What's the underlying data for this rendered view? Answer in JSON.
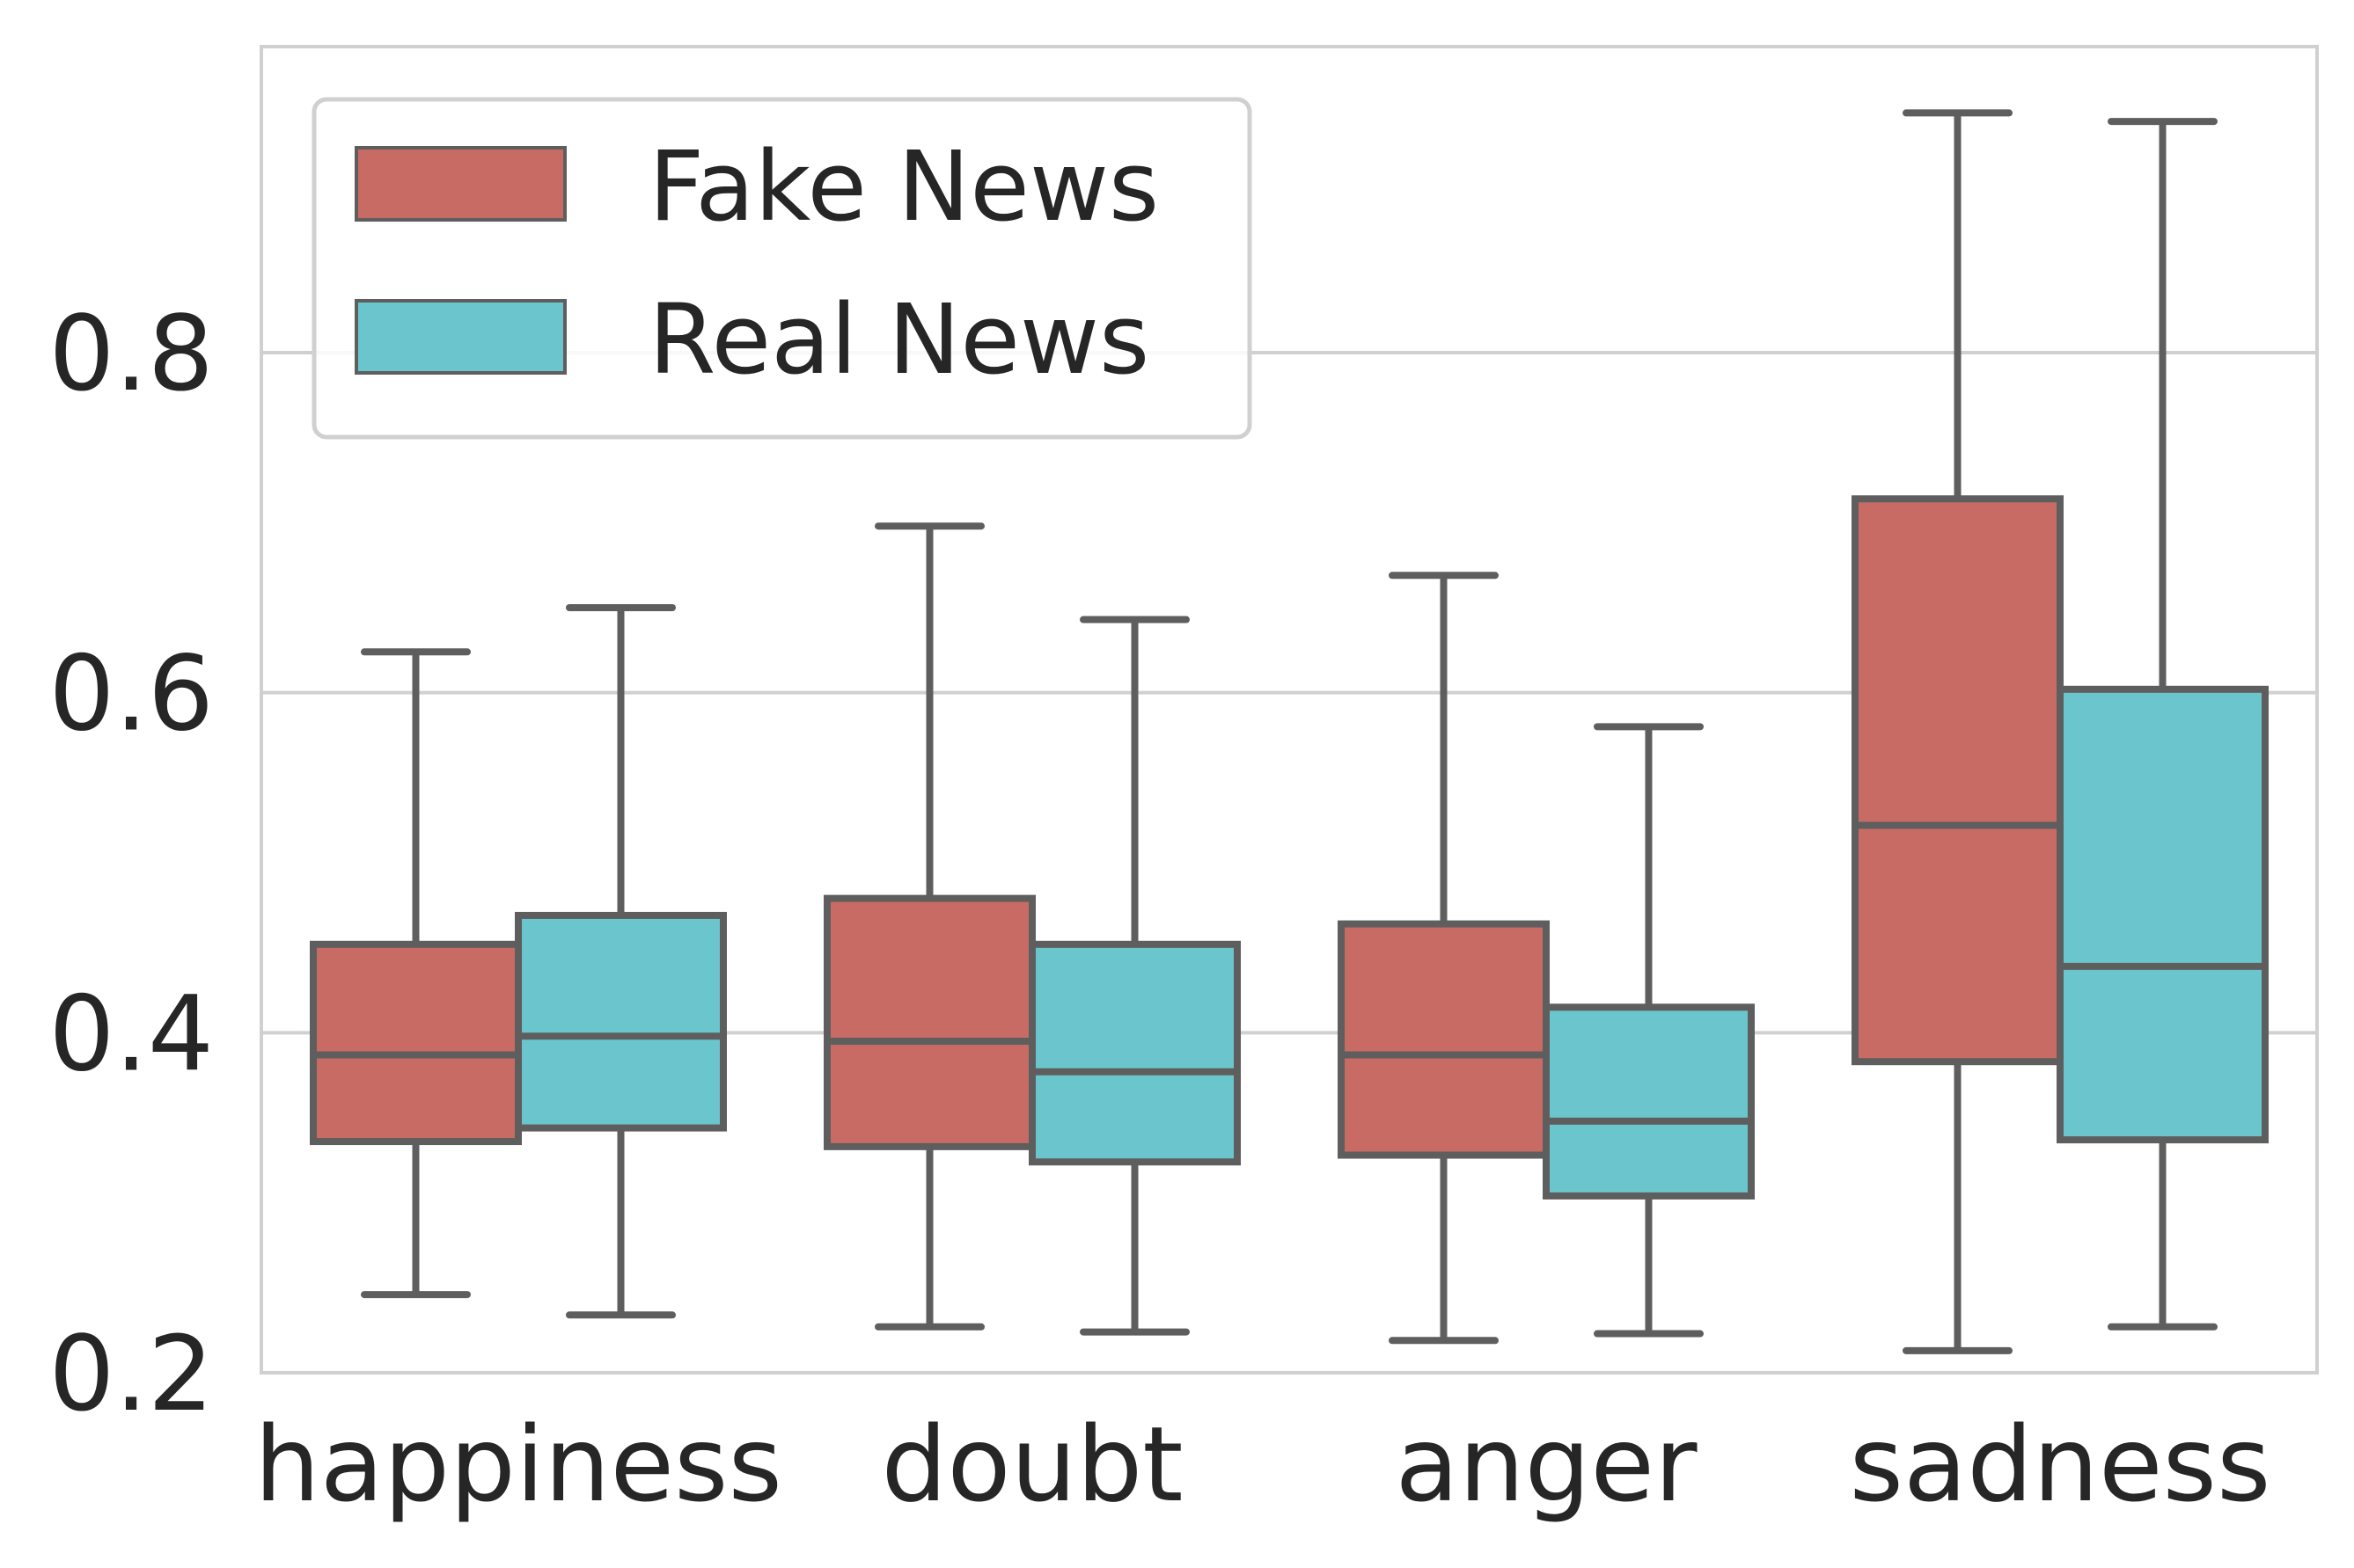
{
  "chart_data": {
    "type": "box",
    "categories": [
      "happiness",
      "doubt",
      "anger",
      "sadness"
    ],
    "series": [
      {
        "name": "Fake News",
        "color": "#c96b65",
        "boxes": [
          {
            "whisker_low": 0.246,
            "q1": 0.336,
            "median": 0.387,
            "q3": 0.452,
            "whisker_high": 0.624
          },
          {
            "whisker_low": 0.227,
            "q1": 0.333,
            "median": 0.395,
            "q3": 0.479,
            "whisker_high": 0.698
          },
          {
            "whisker_low": 0.219,
            "q1": 0.328,
            "median": 0.387,
            "q3": 0.464,
            "whisker_high": 0.669
          },
          {
            "whisker_low": 0.213,
            "q1": 0.383,
            "median": 0.522,
            "q3": 0.714,
            "whisker_high": 0.941
          }
        ]
      },
      {
        "name": "Real News",
        "color": "#6ac5cc",
        "boxes": [
          {
            "whisker_low": 0.234,
            "q1": 0.344,
            "median": 0.398,
            "q3": 0.469,
            "whisker_high": 0.65
          },
          {
            "whisker_low": 0.224,
            "q1": 0.324,
            "median": 0.377,
            "q3": 0.452,
            "whisker_high": 0.643
          },
          {
            "whisker_low": 0.223,
            "q1": 0.304,
            "median": 0.348,
            "q3": 0.415,
            "whisker_high": 0.58
          },
          {
            "whisker_low": 0.227,
            "q1": 0.337,
            "median": 0.439,
            "q3": 0.602,
            "whisker_high": 0.936
          }
        ]
      }
    ],
    "ylim": [
      0.2,
      0.98
    ],
    "yticks": [
      0.2,
      0.4,
      0.6,
      0.8
    ],
    "ytick_labels": [
      "0.2",
      "0.4",
      "0.6",
      "0.8"
    ],
    "grid": true,
    "legend_position": "upper-left",
    "line_color": "#5e5e5e",
    "grid_color": "#d0d0d0",
    "title": "",
    "xlabel": "",
    "ylabel": ""
  }
}
